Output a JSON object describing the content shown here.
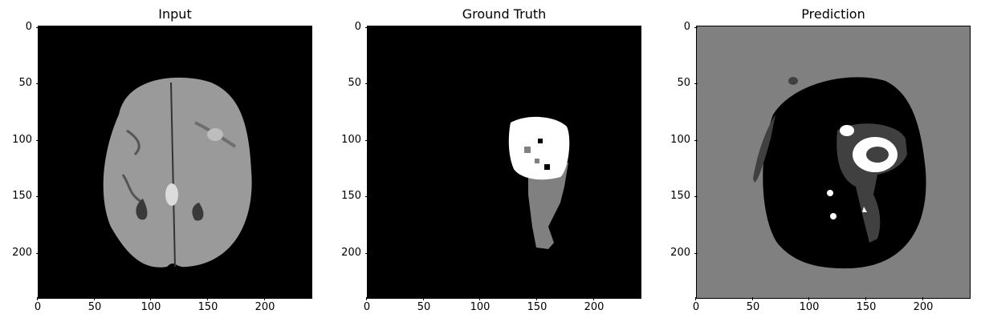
{
  "panels": [
    {
      "title": "Input"
    },
    {
      "title": "Ground Truth"
    },
    {
      "title": "Prediction"
    }
  ],
  "axes": {
    "yticks": [
      "0",
      "50",
      "100",
      "150",
      "200"
    ],
    "xticks": [
      "0",
      "50",
      "100",
      "150",
      "200"
    ]
  },
  "colors": {
    "black": "#000000",
    "gray": "#808080",
    "dark_gray": "#404040",
    "white": "#ffffff"
  }
}
